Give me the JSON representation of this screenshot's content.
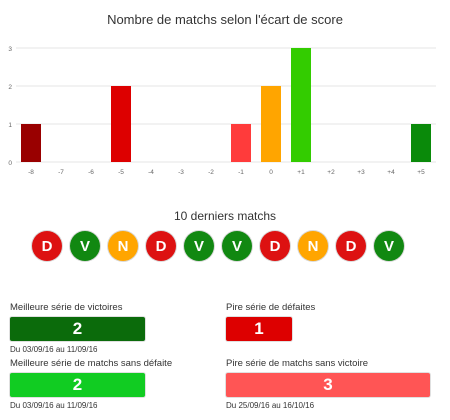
{
  "chart_data": {
    "type": "bar",
    "title": "Nombre de matchs selon l'écart de score",
    "categories": [
      "-8",
      "-7",
      "-6",
      "-5",
      "-4",
      "-3",
      "-2",
      "-1",
      "0",
      "+1",
      "+2",
      "+3",
      "+4",
      "+5"
    ],
    "values": [
      1,
      0,
      0,
      2,
      0,
      0,
      0,
      1,
      2,
      3,
      0,
      0,
      0,
      1
    ],
    "colors": [
      "#990000",
      "#cc0000",
      "#cc0000",
      "#dd0000",
      "#cc0000",
      "#cc0000",
      "#e53935",
      "#ff3b3b",
      "#ffa500",
      "#33cc00",
      "#1f9e1f",
      "#1f9e1f",
      "#1f9e1f",
      "#0a8a0a"
    ],
    "ylim": [
      0,
      3
    ],
    "yticks": [
      0,
      1,
      2,
      3
    ],
    "grid": true
  },
  "recent": {
    "title": "10 derniers matchs",
    "matches": [
      {
        "label": "D",
        "color": "#dd1111"
      },
      {
        "label": "V",
        "color": "#118811"
      },
      {
        "label": "N",
        "color": "#ffa500"
      },
      {
        "label": "D",
        "color": "#dd1111"
      },
      {
        "label": "V",
        "color": "#118811"
      },
      {
        "label": "V",
        "color": "#118811"
      },
      {
        "label": "D",
        "color": "#dd1111"
      },
      {
        "label": "N",
        "color": "#ffa500"
      },
      {
        "label": "D",
        "color": "#dd1111"
      },
      {
        "label": "V",
        "color": "#118811"
      }
    ]
  },
  "stats": {
    "win_streak": {
      "label": "Meilleure série de victoires",
      "value": "2",
      "dates": "Du 03/09/16 au 11/09/16",
      "color": "#0b6b0b"
    },
    "loss_streak": {
      "label": "Pire série de défaites",
      "value": "1",
      "color": "#dd0000"
    },
    "unbeaten_streak": {
      "label": "Meilleure série de matchs sans défaite",
      "value": "2",
      "dates": "Du 03/09/16 au 11/09/16",
      "color": "#11cc22"
    },
    "winless_streak": {
      "label": "Pire série de matchs sans victoire",
      "value": "3",
      "dates": "Du 25/09/16 au 16/10/16",
      "color": "#ff5555"
    }
  }
}
